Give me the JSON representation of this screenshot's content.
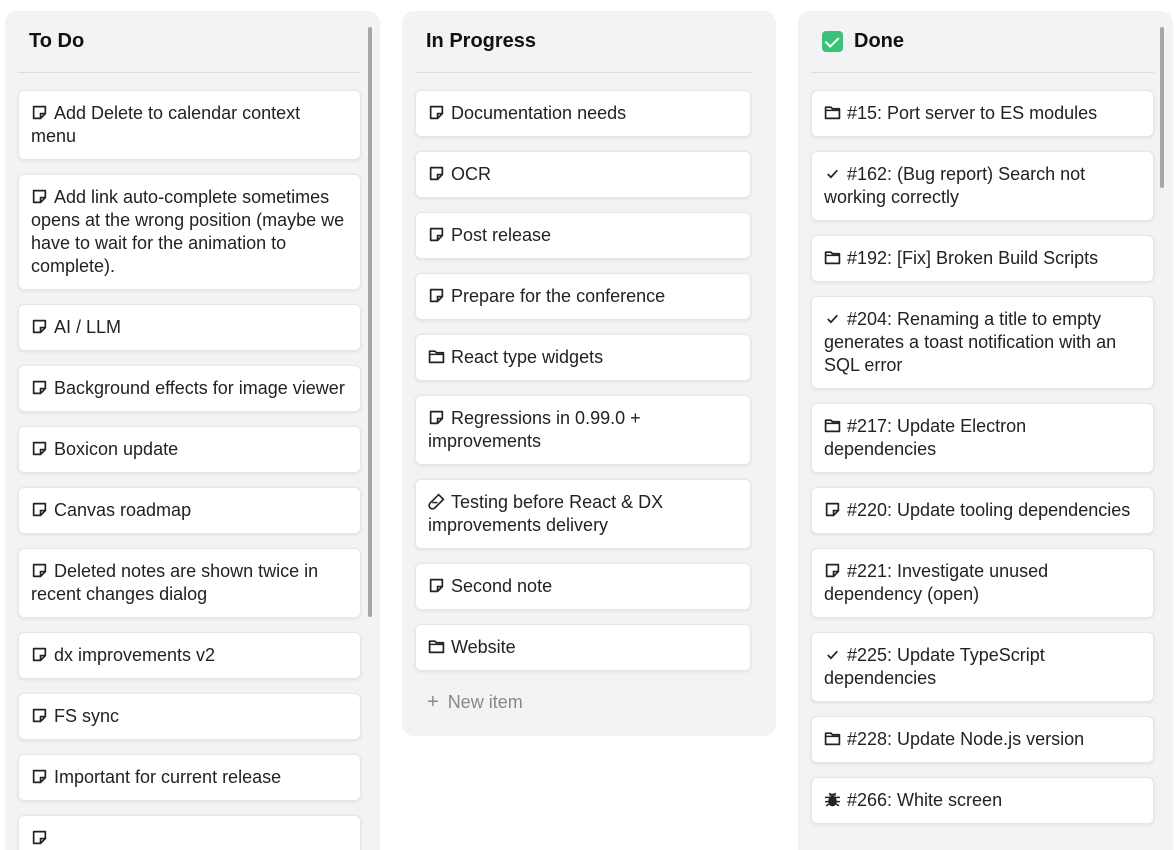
{
  "columns": [
    {
      "title": "To Do",
      "emoji": "",
      "items": [
        {
          "icon": "note",
          "label": "Add Delete to calendar context menu"
        },
        {
          "icon": "note",
          "label": "Add link auto-complete sometimes opens at the wrong position (maybe we have to wait for the animation to complete)."
        },
        {
          "icon": "note",
          "label": "AI / LLM"
        },
        {
          "icon": "note",
          "label": "Background effects for image viewer"
        },
        {
          "icon": "note",
          "label": "Boxicon update"
        },
        {
          "icon": "note",
          "label": "Canvas roadmap"
        },
        {
          "icon": "note",
          "label": "Deleted notes are shown twice in recent changes dialog"
        },
        {
          "icon": "note",
          "label": "dx improvements v2"
        },
        {
          "icon": "note",
          "label": "FS sync"
        },
        {
          "icon": "note",
          "label": "Important for current release"
        },
        {
          "icon": "note",
          "label": ""
        }
      ]
    },
    {
      "title": "In Progress",
      "emoji": "",
      "items": [
        {
          "icon": "note",
          "label": "Documentation needs"
        },
        {
          "icon": "note",
          "label": "OCR"
        },
        {
          "icon": "note",
          "label": "Post release"
        },
        {
          "icon": "note",
          "label": "Prepare for the conference"
        },
        {
          "icon": "folder",
          "label": "React type widgets"
        },
        {
          "icon": "note",
          "label": "Regressions in 0.99.0 + improvements"
        },
        {
          "icon": "flask",
          "label": "Testing before React & DX improvements delivery"
        },
        {
          "icon": "note",
          "label": "Second note"
        },
        {
          "icon": "folder",
          "label": "Website"
        }
      ],
      "new_item_label": "New item"
    },
    {
      "title": "Done",
      "emoji": "check-mark-button",
      "items": [
        {
          "icon": "folder",
          "label": "#15: Port server to ES modules"
        },
        {
          "icon": "check",
          "label": "#162: (Bug report) Search not working correctly"
        },
        {
          "icon": "folder",
          "label": "#192: [Fix] Broken Build Scripts"
        },
        {
          "icon": "check",
          "label": "#204: Renaming a title to empty generates a toast notification with an SQL error"
        },
        {
          "icon": "folder",
          "label": "#217: Update Electron dependencies"
        },
        {
          "icon": "note",
          "label": "#220: Update tooling dependencies"
        },
        {
          "icon": "note",
          "label": "#221: Investigate unused dependency (open)"
        },
        {
          "icon": "check",
          "label": "#225: Update TypeScript dependencies"
        },
        {
          "icon": "folder",
          "label": "#228: Update Node.js version"
        },
        {
          "icon": "bug",
          "label": "#266: White screen"
        }
      ]
    }
  ],
  "colors": {
    "column_bg": "#f3f3f5",
    "done_emoji": "#3cc07a",
    "scrollbar": "#a6a6a6"
  }
}
